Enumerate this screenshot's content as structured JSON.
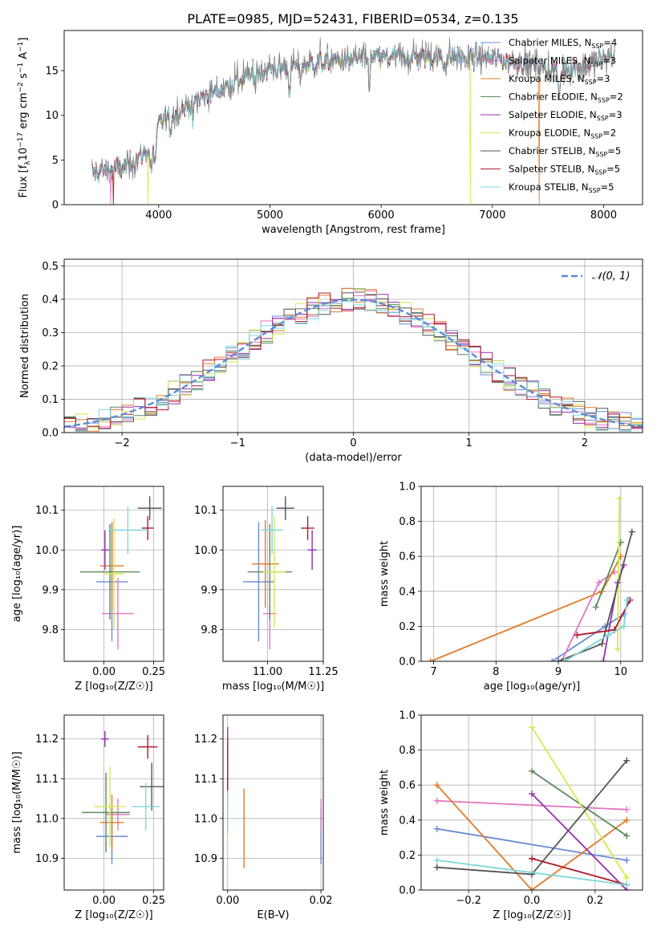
{
  "figure_title": "PLATE=0985, MJD=52431, FIBERID=0534, z=0.135",
  "series_styles": [
    {
      "name": "Chabrier MILES",
      "nssp": "4",
      "color": "#6a8bd6"
    },
    {
      "name": "Salpeter MILES",
      "nssp": "3",
      "color": "#e377c2"
    },
    {
      "name": "Kroupa MILES",
      "nssp": "3",
      "color": "#e07b2a"
    },
    {
      "name": "Chabrier ELODIE",
      "nssp": "2",
      "color": "#5b8a5b"
    },
    {
      "name": "Salpeter ELODIE",
      "nssp": "3",
      "color": "#9b2fae"
    },
    {
      "name": "Kroupa ELODIE",
      "nssp": "2",
      "color": "#d4ea4f"
    },
    {
      "name": "Chabrier STELIB",
      "nssp": "5",
      "color": "#555555"
    },
    {
      "name": "Salpeter STELIB",
      "nssp": "5",
      "color": "#b2182b"
    },
    {
      "name": "Kroupa STELIB",
      "nssp": "5",
      "color": "#7fd7dc"
    }
  ],
  "chart_data": [
    {
      "id": "spectrum",
      "type": "line",
      "xlabel": "wavelength [Angstrom, rest frame]",
      "ylabel_base": "Flux [f",
      "ylabel_lambda": "λ",
      "ylabel_mid": "10",
      "ylabel_exp": "−17",
      "ylabel_unit": " erg cm",
      "ylabel_exp2": "−2",
      "ylabel_s": " s",
      "ylabel_exp3": "−1",
      "ylabel_A": " A",
      "ylabel_exp4": "−1",
      "ylabel_close": "]",
      "xlim": [
        3150,
        8350
      ],
      "ylim": [
        0,
        19.5
      ],
      "xticks": [
        4000,
        5000,
        6000,
        7000,
        8000
      ],
      "yticks": [
        0,
        5,
        10,
        15
      ],
      "legend_placement": "top-right",
      "legend_label_suffix": ", N",
      "legend_label_sub": "SSP",
      "data_range": [
        3400,
        8100
      ],
      "continuum_knots": {
        "x": [
          3400,
          3700,
          3950,
          4000,
          4300,
          4600,
          4900,
          5200,
          5500,
          5800,
          6100,
          6400,
          6700,
          7000,
          7300,
          7600,
          7900,
          8100
        ],
        "y": [
          3.6,
          4.2,
          6.5,
          9.0,
          11.5,
          13.2,
          15.0,
          15.5,
          16.0,
          16.3,
          16.5,
          16.6,
          16.5,
          16.4,
          15.8,
          15.0,
          15.8,
          16.8
        ]
      },
      "absorption_features": [
        {
          "x": 3934,
          "depth": 3.0
        },
        {
          "x": 3968,
          "depth": 2.5
        },
        {
          "x": 4102,
          "depth": 1.5
        },
        {
          "x": 4305,
          "depth": 2.0
        },
        {
          "x": 4861,
          "depth": 1.5
        },
        {
          "x": 5175,
          "depth": 2.5
        },
        {
          "x": 5270,
          "depth": 1.2
        },
        {
          "x": 5893,
          "depth": 2.5
        },
        {
          "x": 6563,
          "depth": 1.0
        },
        {
          "x": 7600,
          "depth": 3.0
        }
      ]
    },
    {
      "id": "residual_hist",
      "type": "histogram",
      "xlabel": "(data-model)/error",
      "ylabel": "Normed distribution",
      "xlim": [
        -2.5,
        2.5
      ],
      "ylim": [
        0,
        0.52
      ],
      "xticks": [
        -2,
        -1,
        0,
        1,
        2
      ],
      "yticks": [
        0.0,
        0.1,
        0.2,
        0.3,
        0.4,
        0.5
      ],
      "bin_width": 0.1,
      "reference_label": "𝒩(0, 1)",
      "legend_placement": "top-right"
    },
    {
      "id": "age_vs_Z",
      "type": "scatter",
      "xlabel": "Z [log₁₀(Z/Z☉)]",
      "ylabel": "age  [log₁₀(age/yr)]",
      "xlim": [
        -0.2,
        0.3
      ],
      "ylim": [
        9.72,
        10.16
      ],
      "xticks": [
        0.0,
        0.25
      ],
      "yticks": [
        9.8,
        9.9,
        10.0,
        10.1
      ],
      "points": [
        {
          "x": 0.04,
          "xerr": 0.08,
          "y": 9.92,
          "yerr": 0.15
        },
        {
          "x": 0.07,
          "xerr": 0.08,
          "y": 9.84,
          "yerr": 0.09
        },
        {
          "x": 0.04,
          "xerr": 0.06,
          "y": 9.96,
          "yerr": 0.11
        },
        {
          "x": 0.03,
          "xerr": 0.15,
          "y": 9.945,
          "yerr": 0.12
        },
        {
          "x": 0.005,
          "xerr": 0.02,
          "y": 10.0,
          "yerr": 0.05
        },
        {
          "x": 0.05,
          "xerr": 0.05,
          "y": 9.94,
          "yerr": 0.14
        },
        {
          "x": 0.23,
          "xerr": 0.06,
          "y": 10.105,
          "yerr": 0.03
        },
        {
          "x": 0.22,
          "xerr": 0.03,
          "y": 10.055,
          "yerr": 0.03
        },
        {
          "x": 0.12,
          "xerr": 0.1,
          "y": 10.05,
          "yerr": 0.06
        }
      ]
    },
    {
      "id": "age_vs_mass",
      "type": "scatter",
      "xlabel": "mass [log₁₀(M/M☉)]",
      "ylabel": "",
      "xlim": [
        10.8,
        11.25
      ],
      "ylim": [
        9.72,
        10.16
      ],
      "xticks": [
        11.0,
        11.25
      ],
      "yticks": [
        9.8,
        9.9,
        10.0,
        10.1
      ],
      "points": [
        {
          "x": 10.96,
          "xerr": 0.07,
          "y": 9.92,
          "yerr": 0.15
        },
        {
          "x": 11.01,
          "xerr": 0.03,
          "y": 9.84,
          "yerr": 0.09
        },
        {
          "x": 10.99,
          "xerr": 0.06,
          "y": 9.965,
          "yerr": 0.11
        },
        {
          "x": 11.01,
          "xerr": 0.1,
          "y": 9.945,
          "yerr": 0.12
        },
        {
          "x": 11.2,
          "xerr": 0.02,
          "y": 10.0,
          "yerr": 0.05
        },
        {
          "x": 11.03,
          "xerr": 0.05,
          "y": 9.945,
          "yerr": 0.14
        },
        {
          "x": 11.08,
          "xerr": 0.04,
          "y": 10.105,
          "yerr": 0.03
        },
        {
          "x": 11.18,
          "xerr": 0.03,
          "y": 10.055,
          "yerr": 0.03
        },
        {
          "x": 11.02,
          "xerr": 0.05,
          "y": 10.05,
          "yerr": 0.06
        }
      ]
    },
    {
      "id": "massweight_vs_age",
      "type": "line",
      "xlabel": "age  [log₁₀(age/yr)]",
      "ylabel": "mass weight",
      "xlim": [
        6.8,
        10.35
      ],
      "ylim": [
        0,
        1.0
      ],
      "xticks": [
        7,
        8,
        9,
        10
      ],
      "yticks": [
        0.0,
        0.2,
        0.4,
        0.6,
        0.8,
        1.0
      ],
      "series": [
        {
          "x": [
            8.9,
            9.75,
            10.05,
            10.12
          ],
          "y": [
            0.0,
            0.2,
            0.27,
            0.35
          ]
        },
        {
          "x": [
            9.05,
            9.65,
            9.9
          ],
          "y": [
            0.0,
            0.45,
            0.51
          ]
        },
        {
          "x": [
            6.95,
            9.7,
            10.0
          ],
          "y": [
            0.0,
            0.4,
            0.6
          ]
        },
        {
          "x": [
            9.6,
            10.0
          ],
          "y": [
            0.31,
            0.68
          ]
        },
        {
          "x": [
            9.72,
            9.95,
            10.05
          ],
          "y": [
            0.0,
            0.45,
            0.55
          ]
        },
        {
          "x": [
            9.95,
            9.98
          ],
          "y": [
            0.07,
            0.93
          ]
        },
        {
          "x": [
            9.0,
            9.7,
            10.18
          ],
          "y": [
            0.0,
            0.1,
            0.74
          ]
        },
        {
          "x": [
            9.3,
            9.9,
            10.15
          ],
          "y": [
            0.15,
            0.18,
            0.35
          ]
        },
        {
          "x": [
            9.1,
            9.8,
            10.05,
            10.1
          ],
          "y": [
            0.0,
            0.15,
            0.2,
            0.35
          ]
        }
      ]
    },
    {
      "id": "mass_vs_Z",
      "type": "scatter",
      "xlabel": "Z [log₁₀(Z/Z☉)]",
      "ylabel": "mass [log₁₀(M/M☉)]",
      "xlim": [
        -0.2,
        0.3
      ],
      "ylim": [
        10.82,
        11.26
      ],
      "xticks": [
        0.0,
        0.25
      ],
      "yticks": [
        10.9,
        11.0,
        11.1,
        11.2
      ],
      "points": [
        {
          "x": 0.04,
          "xerr": 0.08,
          "y": 10.955,
          "yerr": 0.07
        },
        {
          "x": 0.07,
          "xerr": 0.06,
          "y": 11.01,
          "yerr": 0.04
        },
        {
          "x": 0.04,
          "xerr": 0.06,
          "y": 10.99,
          "yerr": 0.07
        },
        {
          "x": 0.01,
          "xerr": 0.12,
          "y": 11.015,
          "yerr": 0.1
        },
        {
          "x": 0.005,
          "xerr": 0.02,
          "y": 11.2,
          "yerr": 0.02
        },
        {
          "x": 0.03,
          "xerr": 0.08,
          "y": 11.03,
          "yerr": 0.1
        },
        {
          "x": 0.24,
          "xerr": 0.06,
          "y": 11.08,
          "yerr": 0.06
        },
        {
          "x": 0.22,
          "xerr": 0.05,
          "y": 11.18,
          "yerr": 0.03
        },
        {
          "x": 0.21,
          "xerr": 0.07,
          "y": 11.03,
          "yerr": 0.06
        }
      ]
    },
    {
      "id": "mass_vs_ebv",
      "type": "scatter",
      "xlabel": "E(B-V)",
      "ylabel": "",
      "xlim": [
        -0.001,
        0.0205
      ],
      "ylim": [
        10.82,
        11.26
      ],
      "xticks": [
        0.0,
        0.02
      ],
      "yticks": [
        10.9,
        11.0,
        11.1,
        11.2
      ],
      "points": [
        {
          "x": 0.02,
          "y": 10.955,
          "yerr": 0.07
        },
        {
          "x": 0.02,
          "y": 11.01,
          "yerr": 0.04
        },
        {
          "x": 0.0035,
          "y": 10.975,
          "yerr": 0.1
        },
        {
          "x": 0.0,
          "y": 11.0,
          "yerr": 0.04
        },
        {
          "x": 0.0,
          "y": 11.17,
          "yerr": 0.06
        },
        {
          "x": 0.0,
          "y": 11.04,
          "yerr": 0.08
        },
        {
          "x": 0.0,
          "y": 11.1,
          "yerr": 0.04
        },
        {
          "x": 0.0,
          "y": 11.12,
          "yerr": 0.08
        },
        {
          "x": 0.0,
          "y": 11.02,
          "yerr": 0.05
        }
      ]
    },
    {
      "id": "massweight_vs_Z",
      "type": "line",
      "xlabel": "Z [log₁₀(Z/Z☉)]",
      "ylabel": "mass weight",
      "xlim": [
        -0.35,
        0.35
      ],
      "ylim": [
        0,
        1.0
      ],
      "xticks": [
        -0.2,
        0.0,
        0.2
      ],
      "yticks": [
        0.0,
        0.2,
        0.4,
        0.6,
        0.8,
        1.0
      ],
      "series": [
        {
          "x": [
            -0.3,
            0.3
          ],
          "y": [
            0.35,
            0.17
          ]
        },
        {
          "x": [
            -0.3,
            0.3
          ],
          "y": [
            0.51,
            0.46
          ]
        },
        {
          "x": [
            -0.3,
            0.0,
            0.3
          ],
          "y": [
            0.6,
            0.0,
            0.4
          ]
        },
        {
          "x": [
            0.0,
            0.3
          ],
          "y": [
            0.68,
            0.31
          ]
        },
        {
          "x": [
            0.0,
            0.3
          ],
          "y": [
            0.55,
            0.0
          ]
        },
        {
          "x": [
            0.0,
            0.3
          ],
          "y": [
            0.93,
            0.07
          ]
        },
        {
          "x": [
            -0.3,
            0.0,
            0.3
          ],
          "y": [
            0.13,
            0.09,
            0.74
          ]
        },
        {
          "x": [
            0.0,
            0.3
          ],
          "y": [
            0.18,
            0.03
          ]
        },
        {
          "x": [
            -0.3,
            0.3
          ],
          "y": [
            0.17,
            0.03
          ]
        }
      ]
    }
  ]
}
